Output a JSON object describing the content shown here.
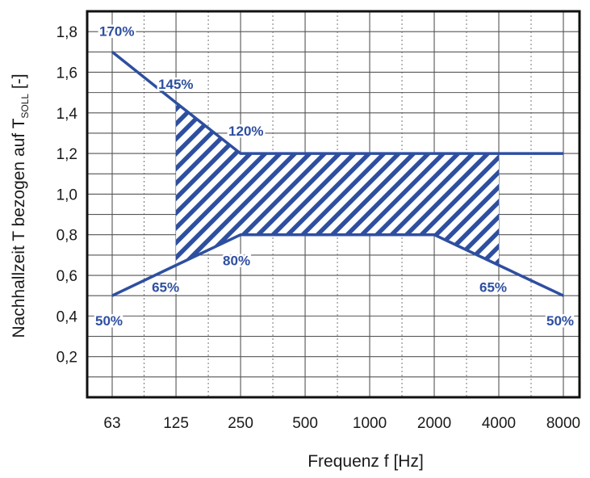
{
  "chart_data": {
    "type": "line",
    "xlabel": "Frequenz f [Hz]",
    "ylabel_prefix": "Nachhallzeit T bezogen auf T",
    "ylabel_subscript": "SOLL",
    "ylabel_suffix": " [-]",
    "x_ticks": [
      "63",
      "125",
      "250",
      "500",
      "1000",
      "2000",
      "4000",
      "8000"
    ],
    "y_ticks": [
      "0,2",
      "0,4",
      "0,6",
      "0,8",
      "1,0",
      "1,2",
      "1,4",
      "1,6",
      "1,8"
    ],
    "ylim": [
      0.0,
      1.9
    ],
    "grid": true,
    "colors": {
      "line": "#2e4fa0",
      "grid": "#555555",
      "axis": "#111111"
    },
    "series": [
      {
        "role": "upper-limit",
        "x": [
          63,
          125,
          250,
          8000
        ],
        "y": [
          1.7,
          1.45,
          1.2,
          1.2
        ]
      },
      {
        "role": "lower-limit",
        "x": [
          63,
          125,
          250,
          2000,
          4000,
          8000
        ],
        "y": [
          0.5,
          0.65,
          0.8,
          0.8,
          0.65,
          0.5
        ]
      }
    ],
    "hatched_region": {
      "x_from": 125,
      "x_to": 4000,
      "upper": {
        "x": [
          125,
          250,
          4000
        ],
        "y": [
          1.45,
          1.2,
          1.2
        ]
      },
      "lower": {
        "x": [
          125,
          250,
          2000,
          4000
        ],
        "y": [
          0.65,
          0.8,
          0.8,
          0.65
        ]
      }
    },
    "annotations": [
      {
        "text": "170%",
        "x": 63,
        "y": 1.7
      },
      {
        "text": "145%",
        "x": 125,
        "y": 1.45
      },
      {
        "text": "120%",
        "x": 250,
        "y": 1.2
      },
      {
        "text": "80%",
        "x": 250,
        "y": 0.8
      },
      {
        "text": "65%",
        "x": 125,
        "y": 0.65
      },
      {
        "text": "65%",
        "x": 4000,
        "y": 0.65
      },
      {
        "text": "50%",
        "x": 63,
        "y": 0.5
      },
      {
        "text": "50%",
        "x": 8000,
        "y": 0.5
      }
    ]
  }
}
